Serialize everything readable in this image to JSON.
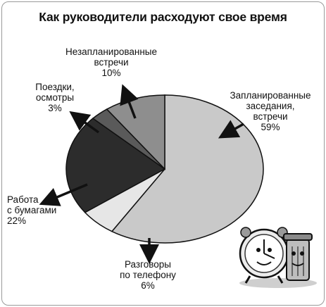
{
  "chart_data": {
    "type": "pie",
    "title": "Как руководители расходуют свое время",
    "slices": [
      {
        "label": [
          "Запланированные",
          "заседания,",
          "встречи"
        ],
        "pct_label": "59%",
        "value": 59,
        "color": "#c9c9c9"
      },
      {
        "label": [
          "Разговоры",
          "по телефону"
        ],
        "pct_label": "6%",
        "value": 6,
        "color": "#e6e6e6"
      },
      {
        "label": [
          "Работа",
          "с бумагами"
        ],
        "pct_label": "22%",
        "value": 22,
        "color": "#2c2c2c"
      },
      {
        "label": [
          "Поездки,",
          "осмотры"
        ],
        "pct_label": "3%",
        "value": 3,
        "color": "#5a5a5a"
      },
      {
        "label": [
          "Незапланированные",
          "встречи"
        ],
        "pct_label": "10%",
        "value": 10,
        "color": "#8e8e8e"
      }
    ],
    "start": "top, clockwise",
    "legend": "none (labels with arrows)"
  },
  "colors": {
    "outline": "#111111",
    "arrow": "#111111"
  },
  "illustration": "clock-and-trash-can-cartoon-icon"
}
